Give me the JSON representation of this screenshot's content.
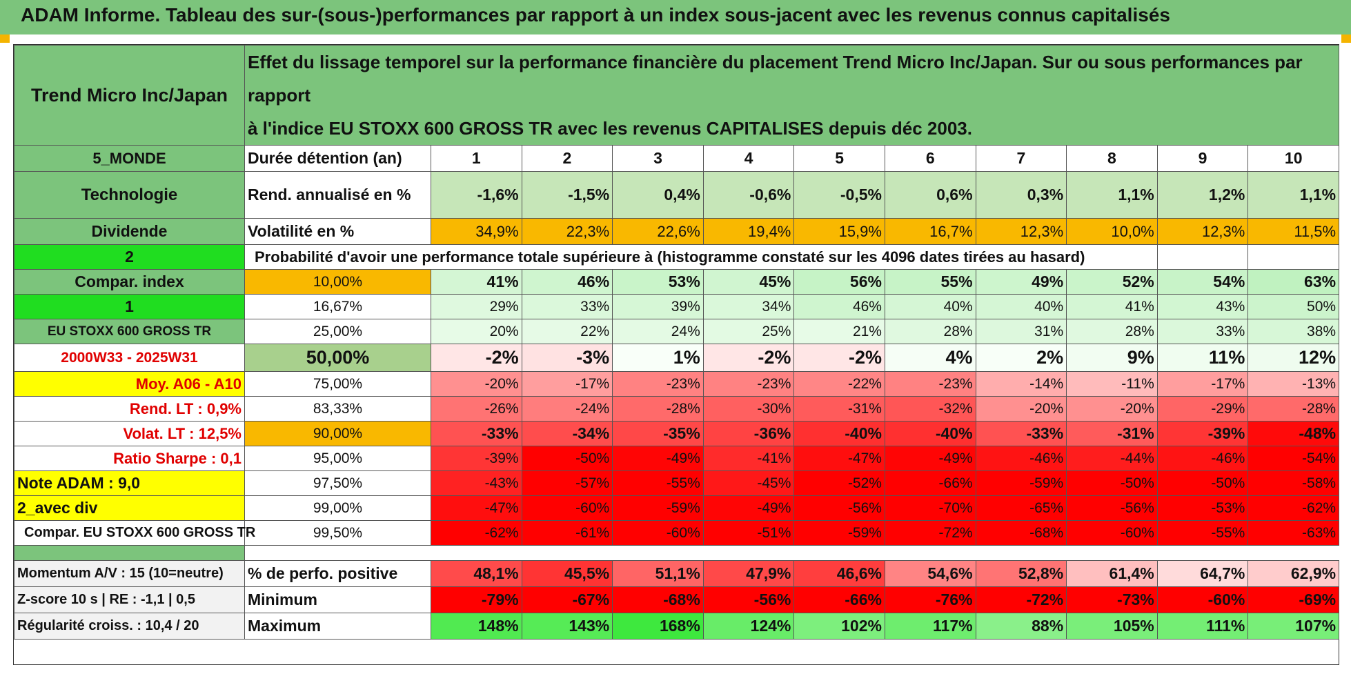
{
  "header": {
    "title": "ADAM Informe. Tableau des sur-(sous-)performances par rapport à un index sous-jacent avec les revenus connus capitalisés",
    "company": "Trend Micro Inc/Japan",
    "description_line1": "Effet du lissage temporel sur la performance financière du placement Trend Micro Inc/Japan. Sur ou sous performances par rapport",
    "description_line2": "à l'indice EU STOXX 600 GROSS TR avec les revenus CAPITALISES depuis déc 2003."
  },
  "left": {
    "region": "5_MONDE",
    "sector": "Technologie",
    "dividend": "Dividende",
    "two": "2",
    "compar_index": "Compar. index",
    "one": "1",
    "index_name": "EU STOXX 600 GROSS TR",
    "period": "2000W33 - 2025W31",
    "moy": "Moy. A06 - A10",
    "rend_lt": "Rend. LT :    0,9%",
    "volat_lt": "Volat. LT :    12,5%",
    "sharpe": "Ratio Sharpe :     0,1",
    "note": "Note ADAM : 9,0",
    "avec_div": "2_avec div",
    "compar_name": "Compar. EU STOXX 600 GROSS TR",
    "momentum": "Momentum A/V : 15 (10=neutre)",
    "zscore": "Z-score 10 s | RE : -1,1 | 0,5",
    "regularite": "Régularité croiss. : 10,4 / 20"
  },
  "rows": {
    "duree_label": "Durée détention (an)",
    "years": [
      "1",
      "2",
      "3",
      "4",
      "5",
      "6",
      "7",
      "8",
      "9",
      "10"
    ],
    "rend_label": "Rend. annualisé en %",
    "rend": [
      "-1,6%",
      "-1,5%",
      "0,4%",
      "-0,6%",
      "-0,5%",
      "0,6%",
      "0,3%",
      "1,1%",
      "1,2%",
      "1,1%"
    ],
    "vol_label": "Volatilité en %",
    "vol": [
      "34,9%",
      "22,3%",
      "22,6%",
      "19,4%",
      "15,9%",
      "16,7%",
      "12,3%",
      "10,0%",
      "12,3%",
      "11,5%"
    ],
    "proba_label": "Probabilité d'avoir une performance totale supérieure à (histogramme constaté sur les 4096 dates tirées au hasard)",
    "quantiles": [
      {
        "q": "10,00%",
        "v": [
          "41%",
          "46%",
          "53%",
          "45%",
          "56%",
          "55%",
          "49%",
          "52%",
          "54%",
          "63%"
        ]
      },
      {
        "q": "16,67%",
        "v": [
          "29%",
          "33%",
          "39%",
          "34%",
          "46%",
          "40%",
          "40%",
          "41%",
          "43%",
          "50%"
        ]
      },
      {
        "q": "25,00%",
        "v": [
          "20%",
          "22%",
          "24%",
          "25%",
          "21%",
          "28%",
          "31%",
          "28%",
          "33%",
          "38%"
        ]
      },
      {
        "q": "50,00%",
        "v": [
          "-2%",
          "-3%",
          "1%",
          "-2%",
          "-2%",
          "4%",
          "2%",
          "9%",
          "11%",
          "12%"
        ]
      },
      {
        "q": "75,00%",
        "v": [
          "-20%",
          "-17%",
          "-23%",
          "-23%",
          "-22%",
          "-23%",
          "-14%",
          "-11%",
          "-17%",
          "-13%"
        ]
      },
      {
        "q": "83,33%",
        "v": [
          "-26%",
          "-24%",
          "-28%",
          "-30%",
          "-31%",
          "-32%",
          "-20%",
          "-20%",
          "-29%",
          "-28%"
        ]
      },
      {
        "q": "90,00%",
        "v": [
          "-33%",
          "-34%",
          "-35%",
          "-36%",
          "-40%",
          "-40%",
          "-33%",
          "-31%",
          "-39%",
          "-48%"
        ]
      },
      {
        "q": "95,00%",
        "v": [
          "-39%",
          "-50%",
          "-49%",
          "-41%",
          "-47%",
          "-49%",
          "-46%",
          "-44%",
          "-46%",
          "-54%"
        ]
      },
      {
        "q": "97,50%",
        "v": [
          "-43%",
          "-57%",
          "-55%",
          "-45%",
          "-52%",
          "-66%",
          "-59%",
          "-50%",
          "-50%",
          "-58%"
        ]
      },
      {
        "q": "99,00%",
        "v": [
          "-47%",
          "-60%",
          "-59%",
          "-49%",
          "-56%",
          "-70%",
          "-65%",
          "-56%",
          "-53%",
          "-62%"
        ]
      },
      {
        "q": "99,50%",
        "v": [
          "-62%",
          "-61%",
          "-60%",
          "-51%",
          "-59%",
          "-72%",
          "-68%",
          "-60%",
          "-55%",
          "-63%"
        ]
      }
    ],
    "pos_label": "% de perfo. positive",
    "pos": [
      "48,1%",
      "45,5%",
      "51,1%",
      "47,9%",
      "46,6%",
      "54,6%",
      "52,8%",
      "61,4%",
      "64,7%",
      "62,9%"
    ],
    "min_label": "Minimum",
    "min": [
      "-79%",
      "-67%",
      "-68%",
      "-56%",
      "-66%",
      "-76%",
      "-72%",
      "-73%",
      "-60%",
      "-69%"
    ],
    "max_label": "Maximum",
    "max": [
      "148%",
      "143%",
      "168%",
      "124%",
      "102%",
      "117%",
      "88%",
      "105%",
      "111%",
      "107%"
    ]
  },
  "colors": {
    "header_green": "#7cc47c",
    "bright_green": "#20dd20",
    "yellow": "#ffff00",
    "orange": "#f9b800",
    "red_text": "#e00000"
  }
}
